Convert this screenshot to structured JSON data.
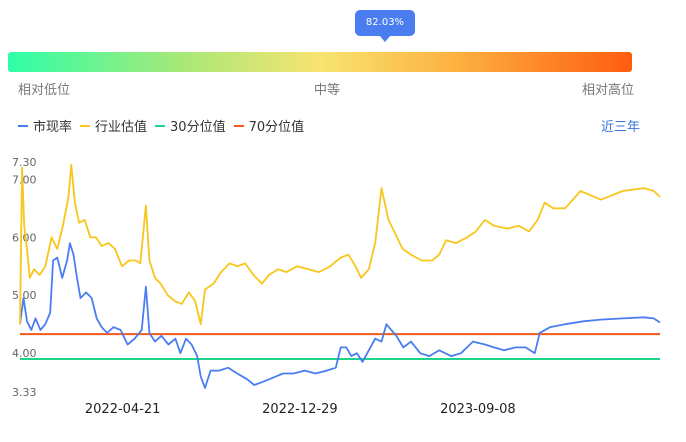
{
  "tooltip": {
    "value": "82.03%"
  },
  "gauge": {
    "position_percent": 82.03,
    "low_label": "相对低位",
    "mid_label": "中等",
    "high_label": "相对高位"
  },
  "legend": {
    "pe": "市现率",
    "industry": "行业估值",
    "p30": "30分位值",
    "p70": "70分位值"
  },
  "period": "近三年",
  "colors": {
    "pe": "#4a7ef0",
    "industry": "#f8c61c",
    "p30": "#1ed48a",
    "p70": "#f25a1c",
    "accent": "#3a74e0"
  },
  "chart_data": {
    "type": "line",
    "x_labels": [
      "2022-04-21",
      "2022-12-29",
      "2023-09-08"
    ],
    "y_tick_labels": [
      "7.30",
      "7.00",
      "6.00",
      "5.00",
      "4.00",
      "3.33"
    ],
    "ylim": [
      3.33,
      7.3
    ],
    "x_range": [
      "2021-11-26",
      "2024-05-24"
    ],
    "reference_lines": {
      "p30": 3.9,
      "p70": 4.33
    },
    "series": [
      {
        "name": "市现率",
        "points": [
          [
            "2021-11-26",
            4.5
          ],
          [
            "2021-12-01",
            4.95
          ],
          [
            "2021-12-06",
            4.55
          ],
          [
            "2021-12-12",
            4.4
          ],
          [
            "2021-12-18",
            4.6
          ],
          [
            "2021-12-25",
            4.4
          ],
          [
            "2022-01-01",
            4.5
          ],
          [
            "2022-01-08",
            4.7
          ],
          [
            "2022-01-12",
            5.6
          ],
          [
            "2022-01-18",
            5.65
          ],
          [
            "2022-01-25",
            5.3
          ],
          [
            "2022-02-01",
            5.6
          ],
          [
            "2022-02-05",
            5.9
          ],
          [
            "2022-02-10",
            5.7
          ],
          [
            "2022-02-15",
            5.3
          ],
          [
            "2022-02-20",
            4.95
          ],
          [
            "2022-02-28",
            5.05
          ],
          [
            "2022-03-08",
            4.95
          ],
          [
            "2022-03-15",
            4.6
          ],
          [
            "2022-03-22",
            4.45
          ],
          [
            "2022-03-30",
            4.35
          ],
          [
            "2022-04-08",
            4.45
          ],
          [
            "2022-04-18",
            4.4
          ],
          [
            "2022-04-28",
            4.15
          ],
          [
            "2022-05-08",
            4.25
          ],
          [
            "2022-05-18",
            4.4
          ],
          [
            "2022-05-24",
            5.15
          ],
          [
            "2022-05-29",
            4.35
          ],
          [
            "2022-06-06",
            4.2
          ],
          [
            "2022-06-15",
            4.3
          ],
          [
            "2022-06-25",
            4.15
          ],
          [
            "2022-07-05",
            4.25
          ],
          [
            "2022-07-12",
            4.0
          ],
          [
            "2022-07-20",
            4.25
          ],
          [
            "2022-07-28",
            4.15
          ],
          [
            "2022-08-05",
            3.95
          ],
          [
            "2022-08-10",
            3.6
          ],
          [
            "2022-08-16",
            3.4
          ],
          [
            "2022-08-24",
            3.7
          ],
          [
            "2022-09-05",
            3.7
          ],
          [
            "2022-09-18",
            3.75
          ],
          [
            "2022-10-01",
            3.65
          ],
          [
            "2022-10-15",
            3.55
          ],
          [
            "2022-10-25",
            3.45
          ],
          [
            "2022-11-05",
            3.5
          ],
          [
            "2022-11-15",
            3.55
          ],
          [
            "2022-11-25",
            3.6
          ],
          [
            "2022-12-05",
            3.65
          ],
          [
            "2022-12-20",
            3.65
          ],
          [
            "2023-01-05",
            3.7
          ],
          [
            "2023-01-20",
            3.65
          ],
          [
            "2023-02-05",
            3.7
          ],
          [
            "2023-02-18",
            3.75
          ],
          [
            "2023-02-25",
            4.1
          ],
          [
            "2023-03-05",
            4.1
          ],
          [
            "2023-03-12",
            3.95
          ],
          [
            "2023-03-20",
            4.0
          ],
          [
            "2023-03-28",
            3.85
          ],
          [
            "2023-04-06",
            4.05
          ],
          [
            "2023-04-15",
            4.25
          ],
          [
            "2023-04-24",
            4.2
          ],
          [
            "2023-05-01",
            4.5
          ],
          [
            "2023-05-08",
            4.4
          ],
          [
            "2023-05-15",
            4.3
          ],
          [
            "2023-05-25",
            4.1
          ],
          [
            "2023-06-05",
            4.2
          ],
          [
            "2023-06-18",
            4.0
          ],
          [
            "2023-07-01",
            3.95
          ],
          [
            "2023-07-15",
            4.05
          ],
          [
            "2023-08-01",
            3.95
          ],
          [
            "2023-08-15",
            4.0
          ],
          [
            "2023-09-01",
            4.2
          ],
          [
            "2023-09-18",
            4.15
          ],
          [
            "2023-10-01",
            4.1
          ],
          [
            "2023-10-15",
            4.05
          ],
          [
            "2023-11-01",
            4.1
          ],
          [
            "2023-11-15",
            4.1
          ],
          [
            "2023-11-28",
            4.0
          ],
          [
            "2023-12-05",
            4.35
          ],
          [
            "2023-12-20",
            4.45
          ],
          [
            "2024-01-10",
            4.5
          ],
          [
            "2024-02-05",
            4.55
          ],
          [
            "2024-03-01",
            4.58
          ],
          [
            "2024-04-01",
            4.6
          ],
          [
            "2024-05-01",
            4.62
          ],
          [
            "2024-05-15",
            4.6
          ],
          [
            "2024-05-24",
            4.53
          ]
        ]
      },
      {
        "name": "行业估值",
        "points": [
          [
            "2021-11-26",
            4.5
          ],
          [
            "2021-11-29",
            7.2
          ],
          [
            "2021-12-02",
            6.2
          ],
          [
            "2021-12-06",
            5.8
          ],
          [
            "2021-12-10",
            5.3
          ],
          [
            "2021-12-16",
            5.45
          ],
          [
            "2021-12-24",
            5.35
          ],
          [
            "2022-01-01",
            5.5
          ],
          [
            "2022-01-10",
            6.0
          ],
          [
            "2022-01-18",
            5.8
          ],
          [
            "2022-01-26",
            6.2
          ],
          [
            "2022-02-03",
            6.7
          ],
          [
            "2022-02-07",
            7.25
          ],
          [
            "2022-02-12",
            6.6
          ],
          [
            "2022-02-18",
            6.25
          ],
          [
            "2022-02-26",
            6.3
          ],
          [
            "2022-03-06",
            6.0
          ],
          [
            "2022-03-14",
            6.0
          ],
          [
            "2022-03-22",
            5.85
          ],
          [
            "2022-04-01",
            5.9
          ],
          [
            "2022-04-10",
            5.8
          ],
          [
            "2022-04-20",
            5.5
          ],
          [
            "2022-04-30",
            5.6
          ],
          [
            "2022-05-10",
            5.6
          ],
          [
            "2022-05-16",
            5.55
          ],
          [
            "2022-05-24",
            6.55
          ],
          [
            "2022-05-29",
            5.6
          ],
          [
            "2022-06-06",
            5.3
          ],
          [
            "2022-06-14",
            5.2
          ],
          [
            "2022-06-24",
            5.0
          ],
          [
            "2022-07-04",
            4.9
          ],
          [
            "2022-07-14",
            4.85
          ],
          [
            "2022-07-24",
            5.05
          ],
          [
            "2022-08-02",
            4.9
          ],
          [
            "2022-08-10",
            4.5
          ],
          [
            "2022-08-16",
            5.1
          ],
          [
            "2022-08-28",
            5.2
          ],
          [
            "2022-09-08",
            5.4
          ],
          [
            "2022-09-20",
            5.55
          ],
          [
            "2022-10-01",
            5.5
          ],
          [
            "2022-10-12",
            5.55
          ],
          [
            "2022-10-24",
            5.35
          ],
          [
            "2022-11-05",
            5.2
          ],
          [
            "2022-11-15",
            5.35
          ],
          [
            "2022-11-28",
            5.45
          ],
          [
            "2022-12-10",
            5.4
          ],
          [
            "2022-12-25",
            5.5
          ],
          [
            "2023-01-10",
            5.45
          ],
          [
            "2023-01-25",
            5.4
          ],
          [
            "2023-02-10",
            5.5
          ],
          [
            "2023-02-25",
            5.65
          ],
          [
            "2023-03-08",
            5.7
          ],
          [
            "2023-03-18",
            5.5
          ],
          [
            "2023-03-26",
            5.3
          ],
          [
            "2023-04-06",
            5.45
          ],
          [
            "2023-04-15",
            5.9
          ],
          [
            "2023-04-24",
            6.85
          ],
          [
            "2023-05-04",
            6.3
          ],
          [
            "2023-05-14",
            6.05
          ],
          [
            "2023-05-24",
            5.8
          ],
          [
            "2023-06-05",
            5.7
          ],
          [
            "2023-06-20",
            5.6
          ],
          [
            "2023-07-05",
            5.6
          ],
          [
            "2023-07-15",
            5.7
          ],
          [
            "2023-07-25",
            5.95
          ],
          [
            "2023-08-08",
            5.9
          ],
          [
            "2023-08-24",
            6.0
          ],
          [
            "2023-09-05",
            6.1
          ],
          [
            "2023-09-18",
            6.3
          ],
          [
            "2023-10-01",
            6.2
          ],
          [
            "2023-10-20",
            6.15
          ],
          [
            "2023-11-05",
            6.2
          ],
          [
            "2023-11-20",
            6.1
          ],
          [
            "2023-12-02",
            6.3
          ],
          [
            "2023-12-12",
            6.6
          ],
          [
            "2023-12-24",
            6.5
          ],
          [
            "2024-01-10",
            6.5
          ],
          [
            "2024-02-01",
            6.8
          ],
          [
            "2024-03-01",
            6.65
          ],
          [
            "2024-04-01",
            6.8
          ],
          [
            "2024-05-01",
            6.85
          ],
          [
            "2024-05-15",
            6.8
          ],
          [
            "2024-05-24",
            6.7
          ]
        ]
      }
    ]
  }
}
